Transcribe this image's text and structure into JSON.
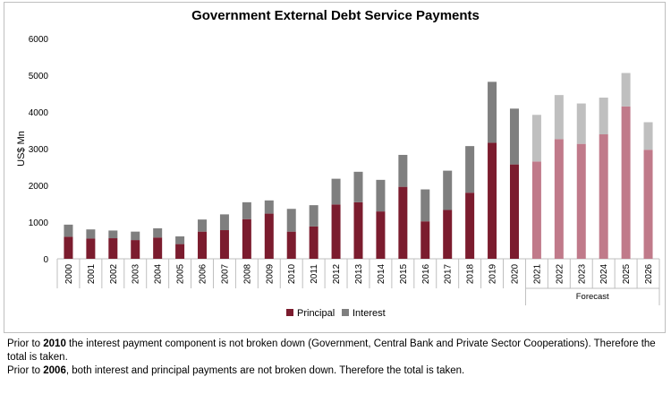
{
  "chart_data": {
    "type": "bar",
    "stacked": true,
    "title": "Government External Debt Service Payments",
    "ylabel": "US$ Mn",
    "xlabel": "",
    "ylim": [
      0,
      6000
    ],
    "yticks": [
      0,
      1000,
      2000,
      3000,
      4000,
      5000,
      6000
    ],
    "grid": false,
    "legend_position": "bottom",
    "categories": [
      "2000",
      "2001",
      "2002",
      "2003",
      "2004",
      "2005",
      "2006",
      "2007",
      "2008",
      "2009",
      "2010",
      "2011",
      "2012",
      "2013",
      "2014",
      "2015",
      "2016",
      "2017",
      "2018",
      "2019",
      "2020",
      "2021",
      "2022",
      "2023",
      "2024",
      "2025",
      "2026"
    ],
    "forecast_label": "Forecast",
    "forecast_start_index": 21,
    "series": [
      {
        "name": "Principal",
        "color": "#7b1c2e",
        "forecast_color": "#c07a8a",
        "values": [
          600,
          550,
          560,
          510,
          580,
          400,
          740,
          780,
          1080,
          1230,
          740,
          880,
          1480,
          1540,
          1290,
          1960,
          1020,
          1330,
          1800,
          3160,
          2570,
          2650,
          3260,
          3130,
          3390,
          4150,
          2970
        ]
      },
      {
        "name": "Interest",
        "color": "#7f7f7f",
        "forecast_color": "#bfbfbf",
        "values": [
          330,
          250,
          210,
          230,
          250,
          210,
          330,
          430,
          460,
          360,
          620,
          580,
          700,
          830,
          860,
          870,
          870,
          1070,
          1270,
          1660,
          1520,
          1270,
          1200,
          1100,
          1000,
          910,
          750
        ]
      }
    ]
  },
  "notes": {
    "line1_pre": "Prior to ",
    "line1_bold": "2010",
    "line1_post": " the interest payment component is not broken down (Government, Central Bank and Private Sector Cooperations). Therefore the total is taken.",
    "line2_pre": "Prior to ",
    "line2_bold": "2006",
    "line2_post": ", both interest and principal payments are not broken down. Therefore the total is taken."
  }
}
